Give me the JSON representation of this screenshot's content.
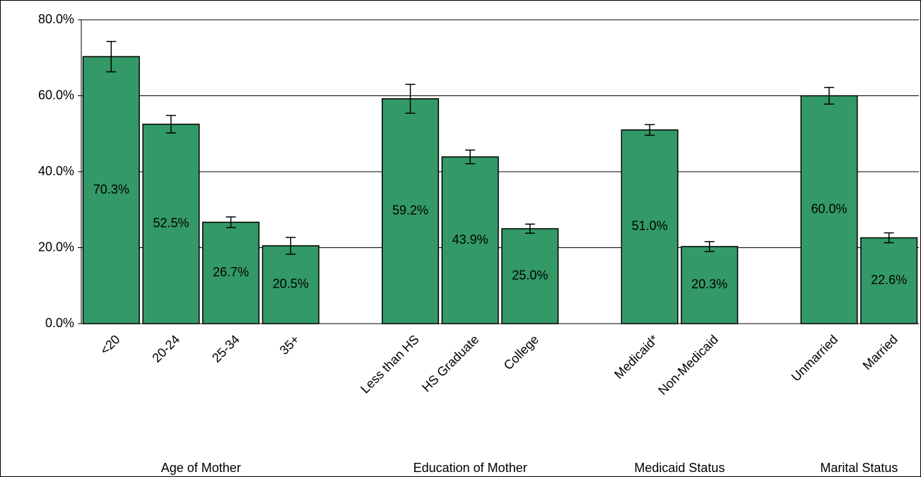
{
  "chart_data": {
    "type": "bar",
    "categories": [
      "<20",
      "20-24",
      "25-34",
      "35+",
      null,
      "Less than HS",
      "HS Graduate",
      "College",
      null,
      "Medicaid*",
      "Non-Medicaid",
      null,
      "Unmarried",
      "Married"
    ],
    "values": [
      70.3,
      52.5,
      26.7,
      20.5,
      null,
      59.2,
      43.9,
      25.0,
      null,
      51.0,
      20.3,
      null,
      60.0,
      22.6
    ],
    "value_labels": [
      "70.3%",
      "52.5%",
      "26.7%",
      "20.5%",
      null,
      "59.2%",
      "43.9%",
      "25.0%",
      null,
      "51.0%",
      "20.3%",
      null,
      "60.0%",
      "22.6%"
    ],
    "errors": [
      4.0,
      2.3,
      1.4,
      2.2,
      null,
      3.8,
      1.8,
      1.2,
      null,
      1.4,
      1.3,
      null,
      2.2,
      1.3
    ],
    "groups": [
      "Age of Mother",
      "Education of Mother",
      "Medicaid Status",
      "Marital Status"
    ],
    "color": "#339966",
    "ylim": [
      0,
      80
    ],
    "yticks": [
      {
        "value": 0,
        "label": "0.0%"
      },
      {
        "value": 20,
        "label": "20.0%"
      },
      {
        "value": 40,
        "label": "40.0%"
      },
      {
        "value": 60,
        "label": "60.0%"
      },
      {
        "value": 80,
        "label": "80.0%"
      }
    ],
    "grid": true
  }
}
